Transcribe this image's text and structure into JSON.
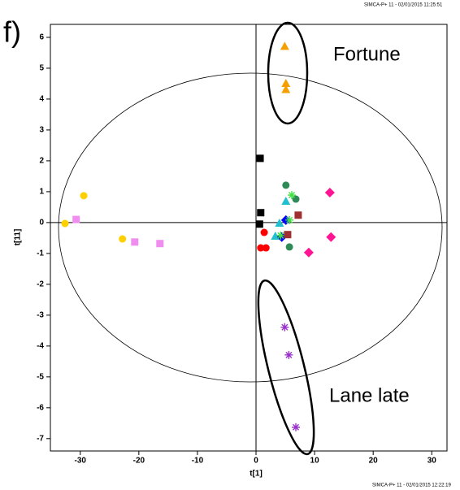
{
  "chart_data": {
    "type": "scatter",
    "panel_label": "f)",
    "header": "SIMCA-P+ 11 - 02/01/2015 11:25:51",
    "footer": "SIMCA-P+ 11 - 02/01/2015 12:22:19",
    "x_label": "t[1]",
    "y_label": "t[11]",
    "annotations": [
      "Fortune",
      "Lane late"
    ],
    "xlim": [
      -35.1,
      32.6
    ],
    "ylim": [
      -7.4,
      6.42
    ],
    "xticks": [
      -30,
      -20,
      -10,
      0,
      10,
      20,
      30
    ],
    "yticks": [
      -7,
      -6,
      -5,
      -4,
      -3,
      -2,
      -1,
      0,
      1,
      2,
      3,
      4,
      5,
      6
    ],
    "series": [
      {
        "color": "#f5a000",
        "marker": "triangle",
        "x": [
          4.9,
          5.1,
          5.1
        ],
        "y": [
          5.7,
          4.5,
          4.3
        ]
      },
      {
        "color": "#ffd000",
        "marker": "circle",
        "x": [
          -32.6,
          -29.4,
          -22.8
        ],
        "y": [
          -0.03,
          0.87,
          -0.53
        ]
      },
      {
        "color": "#f08ef0",
        "marker": "square",
        "x": [
          -30.7,
          -20.7,
          -16.4
        ],
        "y": [
          0.1,
          -0.63,
          -0.68
        ]
      },
      {
        "color": "#000000",
        "marker": "square",
        "x": [
          0.7,
          0.8,
          0.6
        ],
        "y": [
          2.08,
          0.32,
          -0.05
        ]
      },
      {
        "color": "#ff0000",
        "marker": "circle",
        "x": [
          1.4,
          0.8,
          1.7
        ],
        "y": [
          -0.32,
          -0.82,
          -0.82
        ]
      },
      {
        "color": "#2e8b57",
        "marker": "circle",
        "x": [
          5.1,
          6.8,
          5.7
        ],
        "y": [
          1.21,
          0.76,
          -0.79
        ]
      },
      {
        "color": "#20c0d0",
        "marker": "triangle",
        "x": [
          5.1,
          4.0,
          3.3
        ],
        "y": [
          0.68,
          -0.03,
          -0.45
        ]
      },
      {
        "color": "#0000ff",
        "marker": "diamond",
        "x": [
          5.1,
          4.4
        ],
        "y": [
          0.08,
          -0.47
        ]
      },
      {
        "color": "#40e040",
        "marker": "star",
        "x": [
          6.1,
          5.7,
          4.2
        ],
        "y": [
          0.89,
          0.08,
          -0.42
        ]
      },
      {
        "color": "#a03030",
        "marker": "square",
        "x": [
          7.2,
          5.4
        ],
        "y": [
          0.24,
          -0.39
        ]
      },
      {
        "color": "#ff1493",
        "marker": "diamond",
        "x": [
          12.6,
          12.8,
          9.0
        ],
        "y": [
          0.97,
          -0.47,
          -0.97
        ]
      },
      {
        "color": "#9932cc",
        "marker": "star",
        "x": [
          4.9,
          5.6,
          6.8
        ],
        "y": [
          -3.39,
          -4.29,
          -6.63
        ]
      }
    ]
  }
}
